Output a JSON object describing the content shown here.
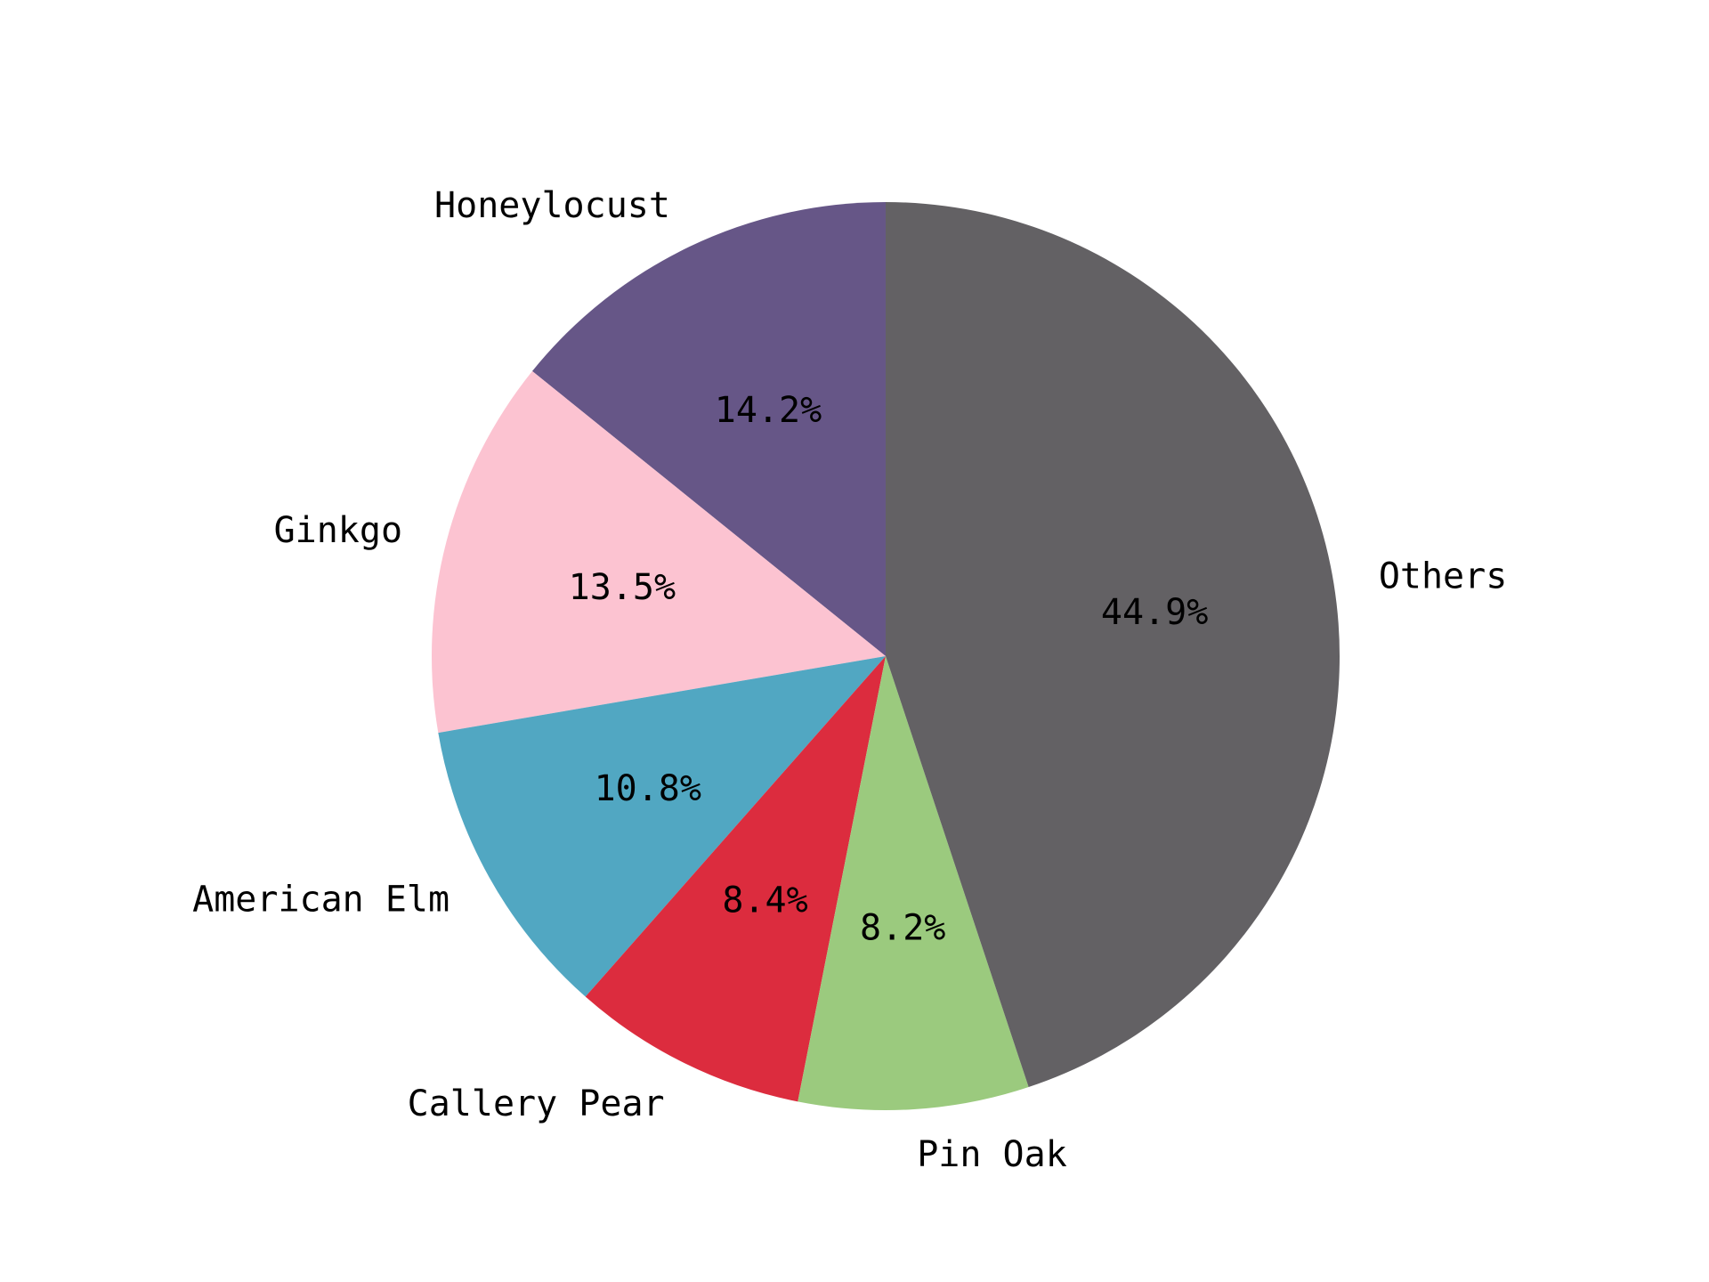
{
  "chart_data": {
    "type": "pie",
    "title": "",
    "start_angle_deg": 90,
    "direction": "counterclockwise",
    "slices": [
      {
        "label": "Honeylocust",
        "value": 14.2,
        "pct_label": "14.2%",
        "color": "#665687"
      },
      {
        "label": "Ginkgo",
        "value": 13.5,
        "pct_label": "13.5%",
        "color": "#fcc3d1"
      },
      {
        "label": "American Elm",
        "value": 10.8,
        "pct_label": "10.8%",
        "color": "#51a7c2"
      },
      {
        "label": "Callery Pear",
        "value": 8.4,
        "pct_label": "8.4%",
        "color": "#dc2c3e"
      },
      {
        "label": "Pin Oak",
        "value": 8.2,
        "pct_label": "8.2%",
        "color": "#9bca7e"
      },
      {
        "label": "Others",
        "value": 44.9,
        "pct_label": "44.9%",
        "color": "#636164"
      }
    ]
  }
}
